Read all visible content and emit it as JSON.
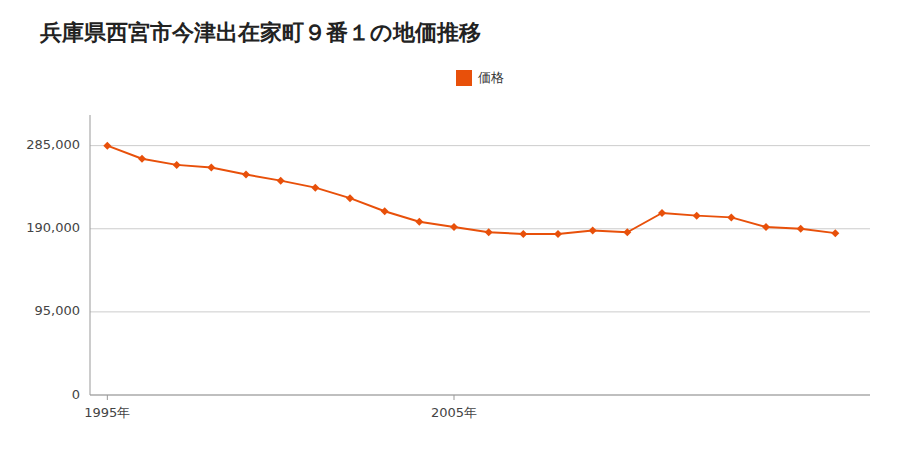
{
  "chart_data": {
    "type": "line",
    "title": "兵庫県西宮市今津出在家町９番１の地価推移",
    "x": [
      1995,
      1996,
      1997,
      1998,
      1999,
      2000,
      2001,
      2002,
      2003,
      2004,
      2005,
      2006,
      2007,
      2008,
      2009,
      2010,
      2011,
      2012,
      2013,
      2014,
      2015,
      2016
    ],
    "series": [
      {
        "name": "価格",
        "color": "#e8500a",
        "marker": "diamond",
        "values": [
          285000,
          270000,
          263000,
          260000,
          252000,
          245000,
          237000,
          225000,
          210000,
          198000,
          192000,
          186000,
          184000,
          184000,
          188000,
          186000,
          208000,
          205000,
          203000,
          192000,
          190000,
          185000
        ]
      }
    ],
    "xlim": [
      1994.5,
      2017
    ],
    "xticks": [
      {
        "value": 1995,
        "label": "1995年"
      },
      {
        "value": 2005,
        "label": "2005年"
      }
    ],
    "ylim": [
      0,
      320000
    ],
    "yticks": [
      0,
      {
        "value": 95000,
        "label": "95,000"
      },
      {
        "value": 190000,
        "label": "190,000"
      },
      {
        "value": 285000,
        "label": "285,000"
      }
    ],
    "grid": true,
    "legend": "top"
  }
}
